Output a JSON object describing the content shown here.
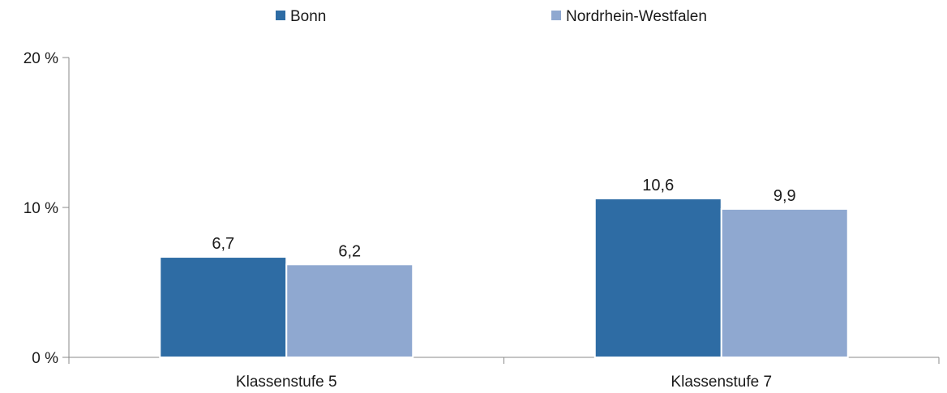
{
  "chart_data": {
    "type": "bar",
    "categories": [
      "Klassenstufe 5",
      "Klassenstufe 7"
    ],
    "series": [
      {
        "name": "Bonn",
        "values": [
          6.7,
          10.6
        ],
        "labels": [
          "6,7",
          "10,6"
        ],
        "color": "#2e6ca4"
      },
      {
        "name": "Nordrhein-Westfalen",
        "values": [
          6.2,
          9.9
        ],
        "labels": [
          "6,2",
          "9,9"
        ],
        "color": "#8fa8d0"
      }
    ],
    "ylim": [
      0,
      20
    ],
    "yticks": [
      0,
      10,
      20
    ],
    "ytick_labels": [
      "0 %",
      "10 %",
      "20 %"
    ],
    "legend_position": "top-center",
    "grid": false
  }
}
